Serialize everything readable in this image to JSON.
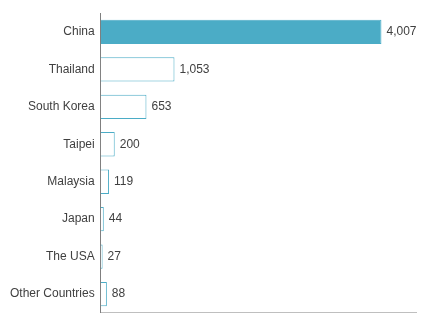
{
  "chart_data": {
    "type": "bar",
    "orientation": "horizontal",
    "categories": [
      "China",
      "Thailand",
      "South Korea",
      "Taipei",
      "Malaysia",
      "Japan",
      "The USA",
      "Other Countries"
    ],
    "values": [
      4007,
      1053,
      653,
      200,
      119,
      44,
      27,
      88
    ],
    "value_labels": [
      "4,007",
      "1,053",
      "653",
      "200",
      "119",
      "44",
      "27",
      "88"
    ],
    "data_labels": true,
    "color": "#4bacc6",
    "colors": [
      "#4bacc6",
      "#ffffff",
      "#ffffff",
      "#ffffff",
      "#ffffff",
      "#ffffff",
      "#ffffff",
      "#ffffff"
    ],
    "xlim": [
      0,
      4500
    ],
    "grid": false,
    "tick_labels": "y"
  }
}
